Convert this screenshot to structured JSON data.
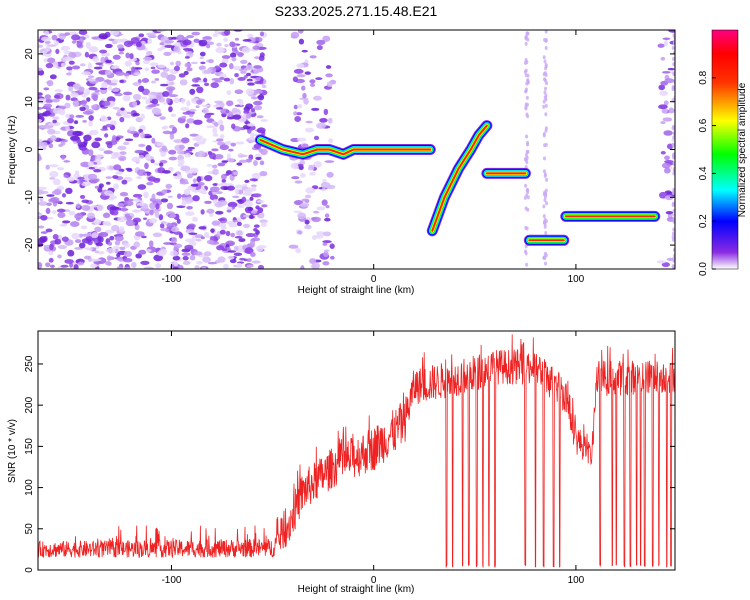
{
  "title": "S233.2025.271.15.48.E21",
  "chart_data": [
    {
      "type": "heatmap",
      "xlabel": "Height of straight line (km)",
      "ylabel": "Frequency (Hz)",
      "xlim": [
        -166,
        149
      ],
      "ylim": [
        -25,
        25
      ],
      "x_ticks": [
        -100,
        0,
        100
      ],
      "y_ticks": [
        -20,
        -10,
        0,
        10,
        20
      ],
      "colorbar": {
        "label": "Normalized spectral amplitude",
        "range": [
          0,
          1
        ],
        "ticks": [
          "0.0",
          "0.2",
          "0.4",
          "0.6",
          "0.8"
        ]
      },
      "noise_regions": [
        [
          -166,
          -54
        ],
        [
          -40,
          -20
        ],
        [
          142,
          149
        ]
      ],
      "tracks": [
        {
          "x": [
            -56,
            -45,
            -35,
            -28,
            -22,
            -15,
            -10,
            0,
            10,
            20,
            28
          ],
          "y": [
            2,
            0,
            -1,
            0,
            0,
            -1,
            0,
            0,
            0,
            0,
            0
          ]
        },
        {
          "x": [
            29,
            35,
            42,
            48,
            52,
            56
          ],
          "y": [
            -17,
            -10,
            -4,
            0,
            3,
            5
          ]
        },
        {
          "x": [
            56,
            63,
            70,
            75
          ],
          "y": [
            -5,
            -5,
            -5,
            -5
          ]
        },
        {
          "x": [
            77,
            84,
            91,
            94
          ],
          "y": [
            -19,
            -19,
            -19,
            -19
          ]
        },
        {
          "x": [
            95,
            105,
            115,
            125,
            133,
            139
          ],
          "y": [
            -14,
            -14,
            -14,
            -14,
            -14,
            -14
          ]
        }
      ]
    },
    {
      "type": "line",
      "xlabel": "Height of straight line (km)",
      "ylabel": "SNR (10 * v/v)",
      "xlim": [
        -166,
        149
      ],
      "ylim": [
        0,
        290
      ],
      "x_ticks": [
        -100,
        0,
        100
      ],
      "y_ticks": [
        0,
        50,
        100,
        150,
        200,
        250
      ],
      "series_color": "#ee2222",
      "envelope": [
        {
          "x": -166,
          "base": 15,
          "top": 35
        },
        {
          "x": -50,
          "base": 15,
          "top": 38
        },
        {
          "x": -42,
          "base": 30,
          "top": 80
        },
        {
          "x": -35,
          "base": 70,
          "top": 120
        },
        {
          "x": -20,
          "base": 100,
          "top": 150
        },
        {
          "x": 0,
          "base": 120,
          "top": 175
        },
        {
          "x": 15,
          "base": 150,
          "top": 205
        },
        {
          "x": 20,
          "base": 200,
          "top": 245
        },
        {
          "x": 40,
          "base": 210,
          "top": 255
        },
        {
          "x": 60,
          "base": 225,
          "top": 268
        },
        {
          "x": 80,
          "base": 225,
          "top": 268
        },
        {
          "x": 95,
          "base": 190,
          "top": 235
        },
        {
          "x": 100,
          "base": 140,
          "top": 180
        },
        {
          "x": 108,
          "base": 125,
          "top": 150
        },
        {
          "x": 110,
          "base": 210,
          "top": 255
        },
        {
          "x": 149,
          "base": 215,
          "top": 255
        }
      ],
      "dropouts": [
        36,
        39,
        44,
        47,
        51,
        54,
        57,
        60,
        75,
        80,
        84,
        89,
        92,
        112,
        118,
        120,
        124,
        127,
        130,
        132,
        134,
        138,
        141,
        145,
        147
      ]
    }
  ]
}
